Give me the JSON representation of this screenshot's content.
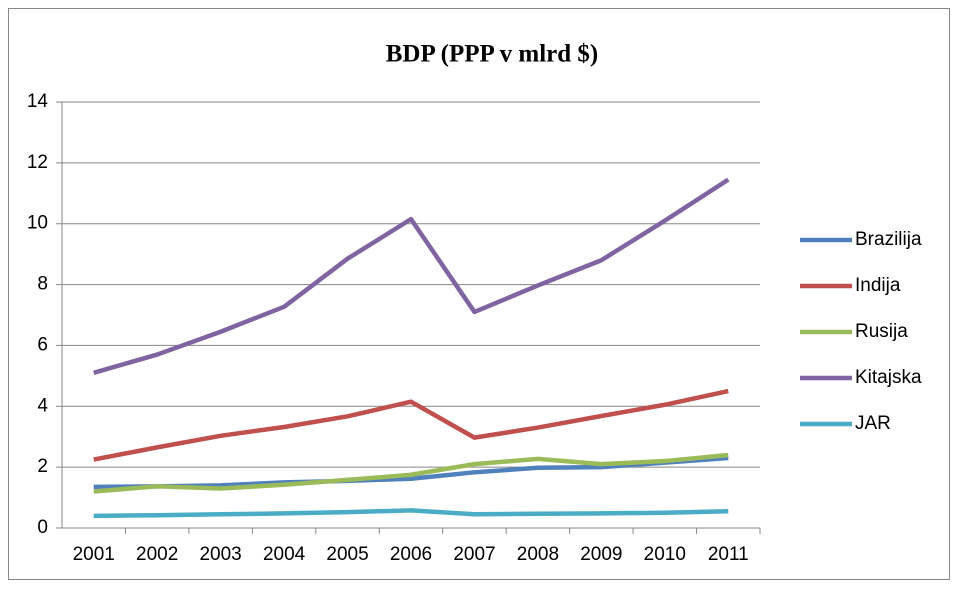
{
  "chart_data": {
    "type": "line",
    "title": "BDP (PPP v mlrd $)",
    "categories": [
      "2001",
      "2002",
      "2003",
      "2004",
      "2005",
      "2006",
      "2007",
      "2008",
      "2009",
      "2010",
      "2011"
    ],
    "series": [
      {
        "name": "Brazilija",
        "color": "#4f81bd",
        "values": [
          1.35,
          1.37,
          1.4,
          1.5,
          1.55,
          1.62,
          1.83,
          1.98,
          2.0,
          2.15,
          2.3
        ]
      },
      {
        "name": "Indija",
        "color": "#c0504d",
        "values": [
          2.25,
          2.65,
          3.03,
          3.32,
          3.67,
          4.15,
          2.97,
          3.3,
          3.68,
          4.05,
          4.5
        ]
      },
      {
        "name": "Rusija",
        "color": "#9bbb59",
        "values": [
          1.2,
          1.37,
          1.3,
          1.42,
          1.58,
          1.75,
          2.1,
          2.27,
          2.1,
          2.2,
          2.4
        ]
      },
      {
        "name": "Kitajska",
        "color": "#8064a2",
        "values": [
          5.1,
          5.7,
          6.45,
          7.27,
          8.85,
          10.15,
          7.1,
          7.97,
          8.8,
          10.1,
          11.45
        ]
      },
      {
        "name": "JAR",
        "color": "#4bacc6",
        "values": [
          0.4,
          0.42,
          0.45,
          0.48,
          0.52,
          0.58,
          0.45,
          0.47,
          0.48,
          0.5,
          0.55
        ]
      }
    ],
    "ylim": [
      0,
      14
    ],
    "yticks": [
      0,
      2,
      4,
      6,
      8,
      10,
      12,
      14
    ],
    "grid": true,
    "legend": "right"
  }
}
